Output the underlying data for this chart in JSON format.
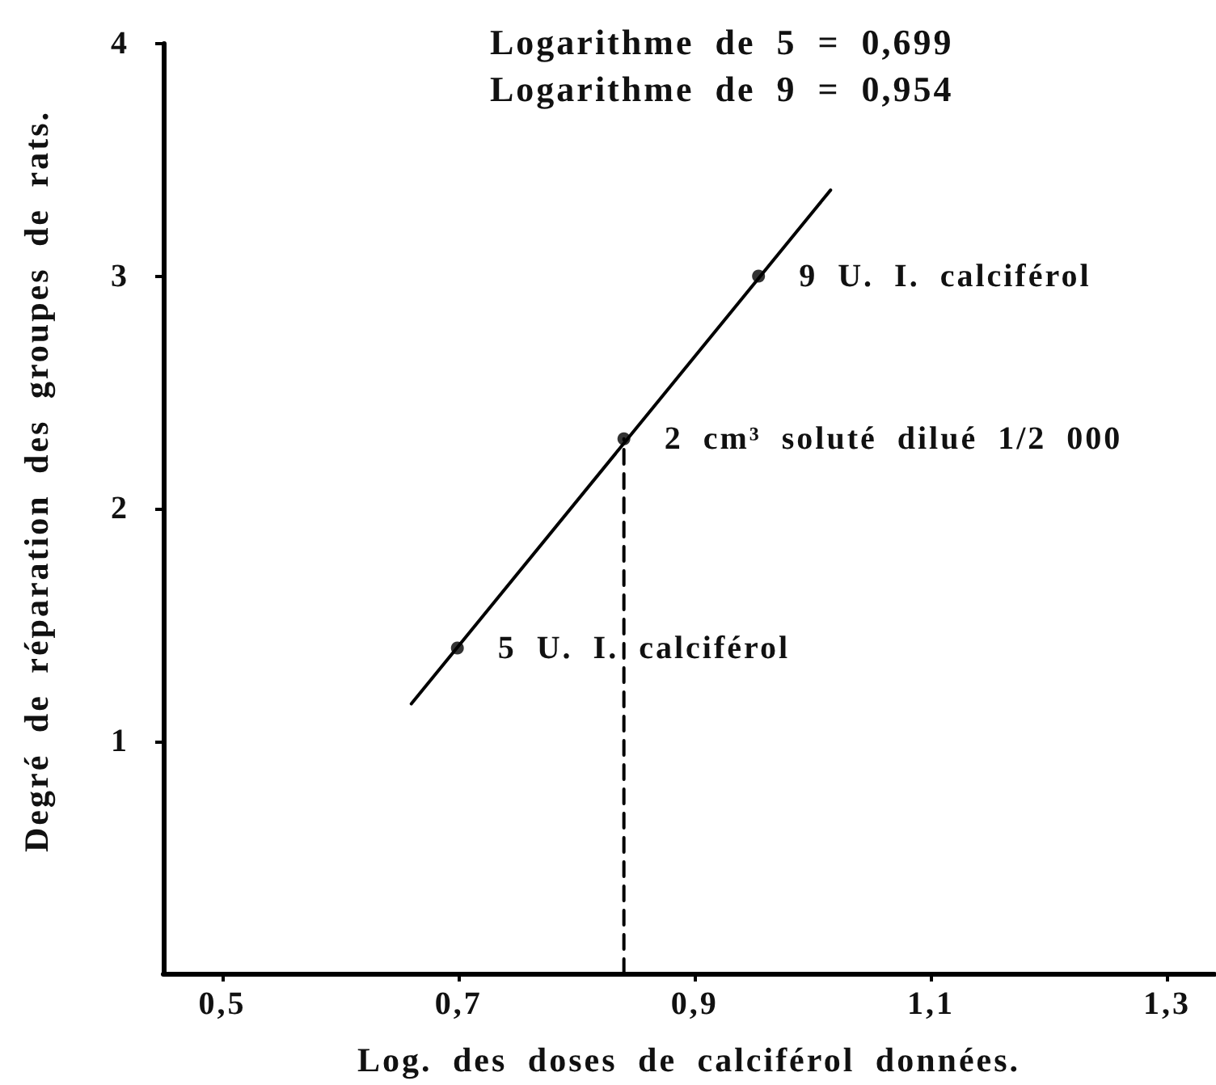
{
  "chart_data": {
    "type": "line",
    "xlabel": "Log. des doses de calciférol données.",
    "ylabel": "Degré de réparation des groupes de rats.",
    "annotations": [
      "Logarithme de 5 = 0,699",
      "Logarithme de 9 = 0,954",
      {
        "text": "9 U. I. calciférol",
        "x": 0.954,
        "y": 3.0
      },
      {
        "text": "2 cm³ soluté dilué 1/2 000",
        "x": 0.84,
        "y": 2.3
      },
      {
        "text": "5 U. I. calciférol",
        "x": 0.699,
        "y": 1.4
      }
    ],
    "xlim": [
      0.45,
      1.34
    ],
    "xticks": [
      {
        "value": 0.5,
        "label": "0,5"
      },
      {
        "value": 0.7,
        "label": "0,7"
      },
      {
        "value": 0.9,
        "label": "0,9"
      },
      {
        "value": 1.1,
        "label": "1,1"
      },
      {
        "value": 1.3,
        "label": "1,3"
      }
    ],
    "ylim": [
      0,
      4
    ],
    "yticks": [
      1,
      2,
      3,
      4
    ],
    "grid": false,
    "series": [
      {
        "color": "#000000",
        "x": [
          0.66,
          1.015
        ],
        "values": [
          1.16,
          3.37
        ],
        "marker": "none",
        "line_style": "solid"
      },
      {
        "color": "#000000",
        "x": [
          0.84,
          0.84
        ],
        "values": [
          0,
          2.3
        ],
        "marker": "none",
        "line_style": "dashed"
      },
      {
        "type": "scatter",
        "color": "#000000",
        "x": [
          0.699,
          0.84,
          0.954
        ],
        "values": [
          1.4,
          2.3,
          3.0
        ],
        "marker": "circle"
      }
    ]
  }
}
